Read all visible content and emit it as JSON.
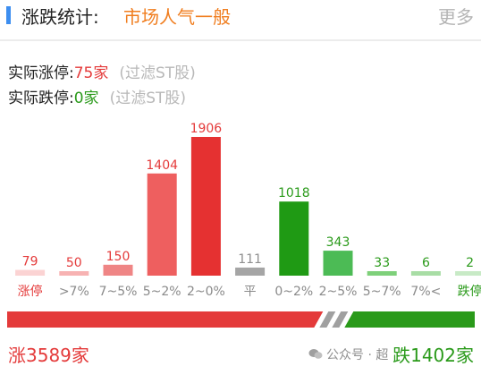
{
  "header": {
    "title": "涨跌统计:",
    "sentiment": "市场人气一般",
    "more_label": "更多"
  },
  "stats": {
    "limit_up_label": "实际涨停:",
    "limit_up_value": "75家",
    "limit_down_label": "实际跌停:",
    "limit_down_value": "0家",
    "filter_note": "(过滤ST股)"
  },
  "colors": {
    "red": "#e43a3a",
    "green": "#2a9a1a",
    "orange": "#f07d1e",
    "blue": "#3d8ef0",
    "gray": "#a5a5a5"
  },
  "chart_data": {
    "type": "bar",
    "categories": [
      "涨停",
      ">7%",
      "7~5%",
      "5~2%",
      "2~0%",
      "平",
      "0~2%",
      "2~5%",
      "5~7%",
      "7%<",
      "跌停"
    ],
    "values": [
      79,
      50,
      150,
      1404,
      1906,
      111,
      1018,
      343,
      33,
      6,
      2
    ],
    "bar_colors": [
      "#fbd3d3",
      "#f7b2b2",
      "#ef8585",
      "#ee5f5f",
      "#e53131",
      "#a5a5a5",
      "#1f9a14",
      "#4cbb55",
      "#7ed07a",
      "#a8dda5",
      "#c8eac6"
    ],
    "value_colors": [
      "#e43a3a",
      "#e43a3a",
      "#e43a3a",
      "#e43a3a",
      "#e43a3a",
      "#8f8f8f",
      "#2a9a1a",
      "#2a9a1a",
      "#2a9a1a",
      "#2a9a1a",
      "#2a9a1a"
    ],
    "category_colors": [
      "#e43a3a",
      "#8a8a8a",
      "#8a8a8a",
      "#8a8a8a",
      "#8a8a8a",
      "#8a8a8a",
      "#8a8a8a",
      "#8a8a8a",
      "#8a8a8a",
      "#8a8a8a",
      "#2a9a1a"
    ],
    "ylim": [
      0,
      1906
    ],
    "grid": false,
    "legend": "none"
  },
  "ratio_bar": {
    "up_count": 3589,
    "down_count": 1402
  },
  "footer": {
    "up_label": "涨3589家",
    "down_label": "跌1402家"
  },
  "watermark": {
    "text": "公众号 · 超"
  }
}
